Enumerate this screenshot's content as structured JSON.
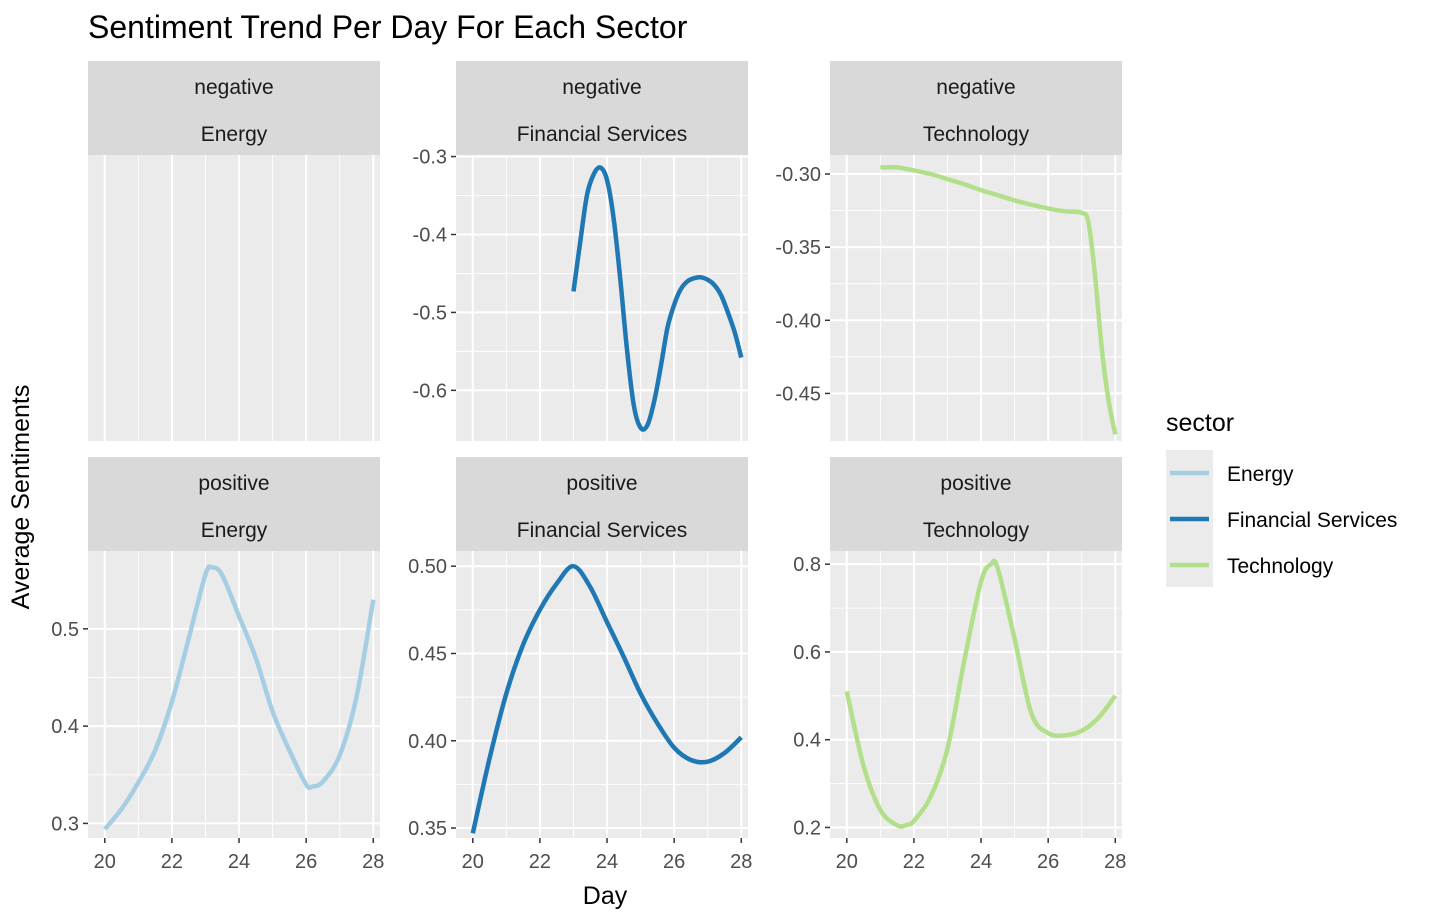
{
  "chart_data": {
    "type": "line",
    "title": "Sentiment Trend Per Day For Each Sector",
    "xlabel": "Day",
    "ylabel": "Average Sentiments",
    "legend": {
      "title": "sector",
      "position": "right",
      "entries": [
        {
          "name": "Energy",
          "color": "#a6cee3"
        },
        {
          "name": "Financial Services",
          "color": "#1f78b4"
        },
        {
          "name": "Technology",
          "color": "#b2df8a"
        }
      ]
    },
    "grid": true,
    "xlim": [
      19.5,
      28.2
    ],
    "x_ticks": [
      20,
      22,
      24,
      26,
      28
    ],
    "panels": [
      {
        "row": "negative",
        "col": "Energy",
        "color": "#a6cee3",
        "strip": [
          "negative",
          "Energy"
        ],
        "ylim": [
          0,
          1
        ],
        "y_ticks": [],
        "y_tick_labels": [],
        "x": [],
        "y": []
      },
      {
        "row": "negative",
        "col": "Financial Services",
        "color": "#1f78b4",
        "strip": [
          "negative",
          "Financial Services"
        ],
        "ylim": [
          -0.665,
          -0.298
        ],
        "y_ticks": [
          -0.3,
          -0.4,
          -0.5,
          -0.6
        ],
        "y_tick_labels": [
          "-0.3",
          "-0.4",
          "-0.5",
          "-0.6"
        ],
        "x": [
          23.0,
          23.2,
          23.4,
          23.6,
          23.8,
          24.0,
          24.2,
          24.4,
          24.6,
          24.8,
          25.0,
          25.2,
          25.4,
          25.6,
          25.8,
          26.0,
          26.2,
          26.4,
          26.6,
          26.8,
          27.0,
          27.2,
          27.4,
          27.6,
          27.8,
          28.0
        ],
        "y": [
          -0.473,
          -0.41,
          -0.35,
          -0.323,
          -0.314,
          -0.33,
          -0.38,
          -0.46,
          -0.55,
          -0.62,
          -0.648,
          -0.645,
          -0.615,
          -0.57,
          -0.52,
          -0.49,
          -0.47,
          -0.46,
          -0.456,
          -0.455,
          -0.458,
          -0.465,
          -0.478,
          -0.5,
          -0.525,
          -0.558
        ]
      },
      {
        "row": "negative",
        "col": "Technology",
        "color": "#b2df8a",
        "strip": [
          "negative",
          "Technology"
        ],
        "ylim": [
          -0.4825,
          -0.287
        ],
        "y_ticks": [
          -0.3,
          -0.35,
          -0.4,
          -0.45
        ],
        "y_tick_labels": [
          "-0.30",
          "-0.35",
          "-0.40",
          "-0.45"
        ],
        "x": [
          21.0,
          21.5,
          22.0,
          22.5,
          23.0,
          23.5,
          24.0,
          24.5,
          25.0,
          25.5,
          26.0,
          26.5,
          27.0,
          27.2,
          27.4,
          27.6,
          27.8,
          28.0
        ],
        "y": [
          -0.2955,
          -0.2955,
          -0.2975,
          -0.3,
          -0.3035,
          -0.307,
          -0.311,
          -0.3145,
          -0.318,
          -0.321,
          -0.3235,
          -0.3255,
          -0.3265,
          -0.333,
          -0.37,
          -0.42,
          -0.455,
          -0.478
        ]
      },
      {
        "row": "positive",
        "col": "Energy",
        "color": "#a6cee3",
        "strip": [
          "positive",
          "Energy"
        ],
        "ylim": [
          0.285,
          0.58
        ],
        "y_ticks": [
          0.3,
          0.4,
          0.5
        ],
        "y_tick_labels": [
          "0.3",
          "0.4",
          "0.5"
        ],
        "x": [
          20.0,
          20.5,
          21.0,
          21.5,
          22.0,
          22.5,
          23.0,
          23.2,
          23.5,
          24.0,
          24.5,
          25.0,
          25.5,
          26.0,
          26.2,
          26.5,
          27.0,
          27.5,
          28.0
        ],
        "y": [
          0.294,
          0.315,
          0.342,
          0.375,
          0.425,
          0.49,
          0.556,
          0.563,
          0.555,
          0.513,
          0.47,
          0.415,
          0.375,
          0.34,
          0.338,
          0.343,
          0.37,
          0.43,
          0.53
        ]
      },
      {
        "row": "positive",
        "col": "Financial Services",
        "color": "#1f78b4",
        "strip": [
          "positive",
          "Financial Services"
        ],
        "ylim": [
          0.3443,
          0.5087
        ],
        "y_ticks": [
          0.35,
          0.4,
          0.45,
          0.5
        ],
        "y_tick_labels": [
          "0.35",
          "0.40",
          "0.45",
          "0.50"
        ],
        "x": [
          20.0,
          20.5,
          21.0,
          21.5,
          22.0,
          22.5,
          23.0,
          23.5,
          24.0,
          24.5,
          25.0,
          25.5,
          26.0,
          26.5,
          27.0,
          27.5,
          28.0
        ],
        "y": [
          0.347,
          0.39,
          0.427,
          0.455,
          0.475,
          0.49,
          0.5,
          0.488,
          0.468,
          0.448,
          0.427,
          0.41,
          0.396,
          0.389,
          0.388,
          0.393,
          0.402
        ]
      },
      {
        "row": "positive",
        "col": "Technology",
        "color": "#b2df8a",
        "strip": [
          "positive",
          "Technology"
        ],
        "ylim": [
          0.176,
          0.83
        ],
        "y_ticks": [
          0.2,
          0.4,
          0.6,
          0.8
        ],
        "y_tick_labels": [
          "0.2",
          "0.4",
          "0.6",
          "0.8"
        ],
        "x": [
          20.0,
          20.5,
          21.0,
          21.5,
          21.8,
          22.0,
          22.5,
          23.0,
          23.5,
          24.0,
          24.3,
          24.5,
          25.0,
          25.5,
          26.0,
          26.5,
          27.0,
          27.5,
          28.0
        ],
        "y": [
          0.51,
          0.34,
          0.24,
          0.205,
          0.206,
          0.215,
          0.27,
          0.38,
          0.58,
          0.76,
          0.8,
          0.79,
          0.63,
          0.46,
          0.415,
          0.41,
          0.42,
          0.45,
          0.5
        ]
      }
    ]
  }
}
